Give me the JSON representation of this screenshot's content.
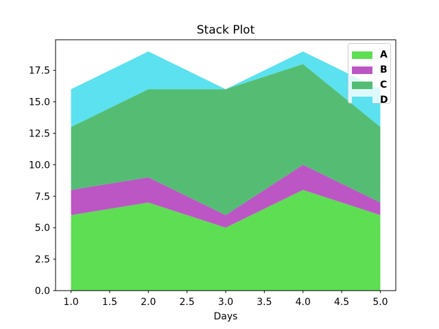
{
  "figure": {
    "background": "#ffffff"
  },
  "chart_data": {
    "type": "area",
    "stacked": true,
    "title": "Stack Plot",
    "xlabel": "Days",
    "ylabel": "",
    "x": [
      1,
      2,
      3,
      4,
      5
    ],
    "series": [
      {
        "name": "A",
        "values": [
          6,
          7,
          5,
          8,
          6
        ],
        "color": "#5dde53"
      },
      {
        "name": "B",
        "values": [
          2,
          2,
          1,
          2,
          1
        ],
        "color": "#bc56c4"
      },
      {
        "name": "C",
        "values": [
          5,
          7,
          10,
          8,
          6
        ],
        "color": "#54bd73"
      },
      {
        "name": "D",
        "values": [
          3,
          3,
          0,
          1,
          3
        ],
        "color": "#5be1ef"
      }
    ],
    "xticks": [
      1.0,
      1.5,
      2.0,
      2.5,
      3.0,
      3.5,
      4.0,
      4.5,
      5.0
    ],
    "yticks": [
      0.0,
      2.5,
      5.0,
      7.5,
      10.0,
      12.5,
      15.0,
      17.5
    ],
    "xlim": [
      0.8,
      5.2
    ],
    "ylim": [
      0,
      19.93
    ],
    "grid": false,
    "axis_color": "#000000",
    "legend": {
      "position": "upper right",
      "labels": [
        "A",
        "B",
        "C",
        "D"
      ],
      "bold": true,
      "border_color": "#cccccc",
      "background": "rgba(255,255,255,0.8)"
    }
  }
}
